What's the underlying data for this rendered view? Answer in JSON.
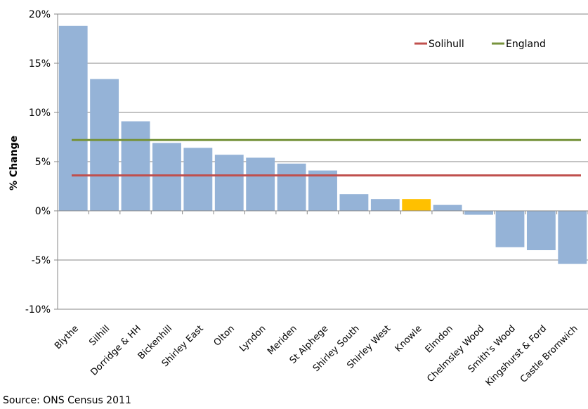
{
  "chart_data": {
    "type": "bar",
    "categories": [
      "Blythe",
      "Silhill",
      "Dorridge & HH",
      "Bickenhill",
      "Shirley East",
      "Olton",
      "Lyndon",
      "Meriden",
      "St Alphege",
      "Shirley South",
      "Shirley West",
      "Knowle",
      "Elmdon",
      "Chelmsley Wood",
      "Smith's Wood",
      "Kingshurst & Ford",
      "Castle Bromwich"
    ],
    "values": [
      18.8,
      13.4,
      9.1,
      6.9,
      6.4,
      5.7,
      5.4,
      4.8,
      4.1,
      1.7,
      1.2,
      1.2,
      0.6,
      -0.4,
      -3.7,
      -4.0,
      -5.4
    ],
    "highlight_category": "Knowle",
    "colors": {
      "bar": "#95b3d7",
      "highlight": "#ffc000",
      "solihull": "#c0504d",
      "england": "#77933c"
    },
    "reference_lines": [
      {
        "name": "Solihull",
        "value": 3.6,
        "color": "#c0504d"
      },
      {
        "name": "England",
        "value": 7.2,
        "color": "#77933c"
      }
    ],
    "yticks": [
      "20%",
      "15%",
      "10%",
      "5%",
      "0%",
      "-5%",
      "-10%"
    ],
    "ylim": [
      -10,
      20
    ],
    "ylabel": "% Change",
    "legend_position": "top-right",
    "grid": true
  },
  "source": "Source: ONS Census 2011"
}
